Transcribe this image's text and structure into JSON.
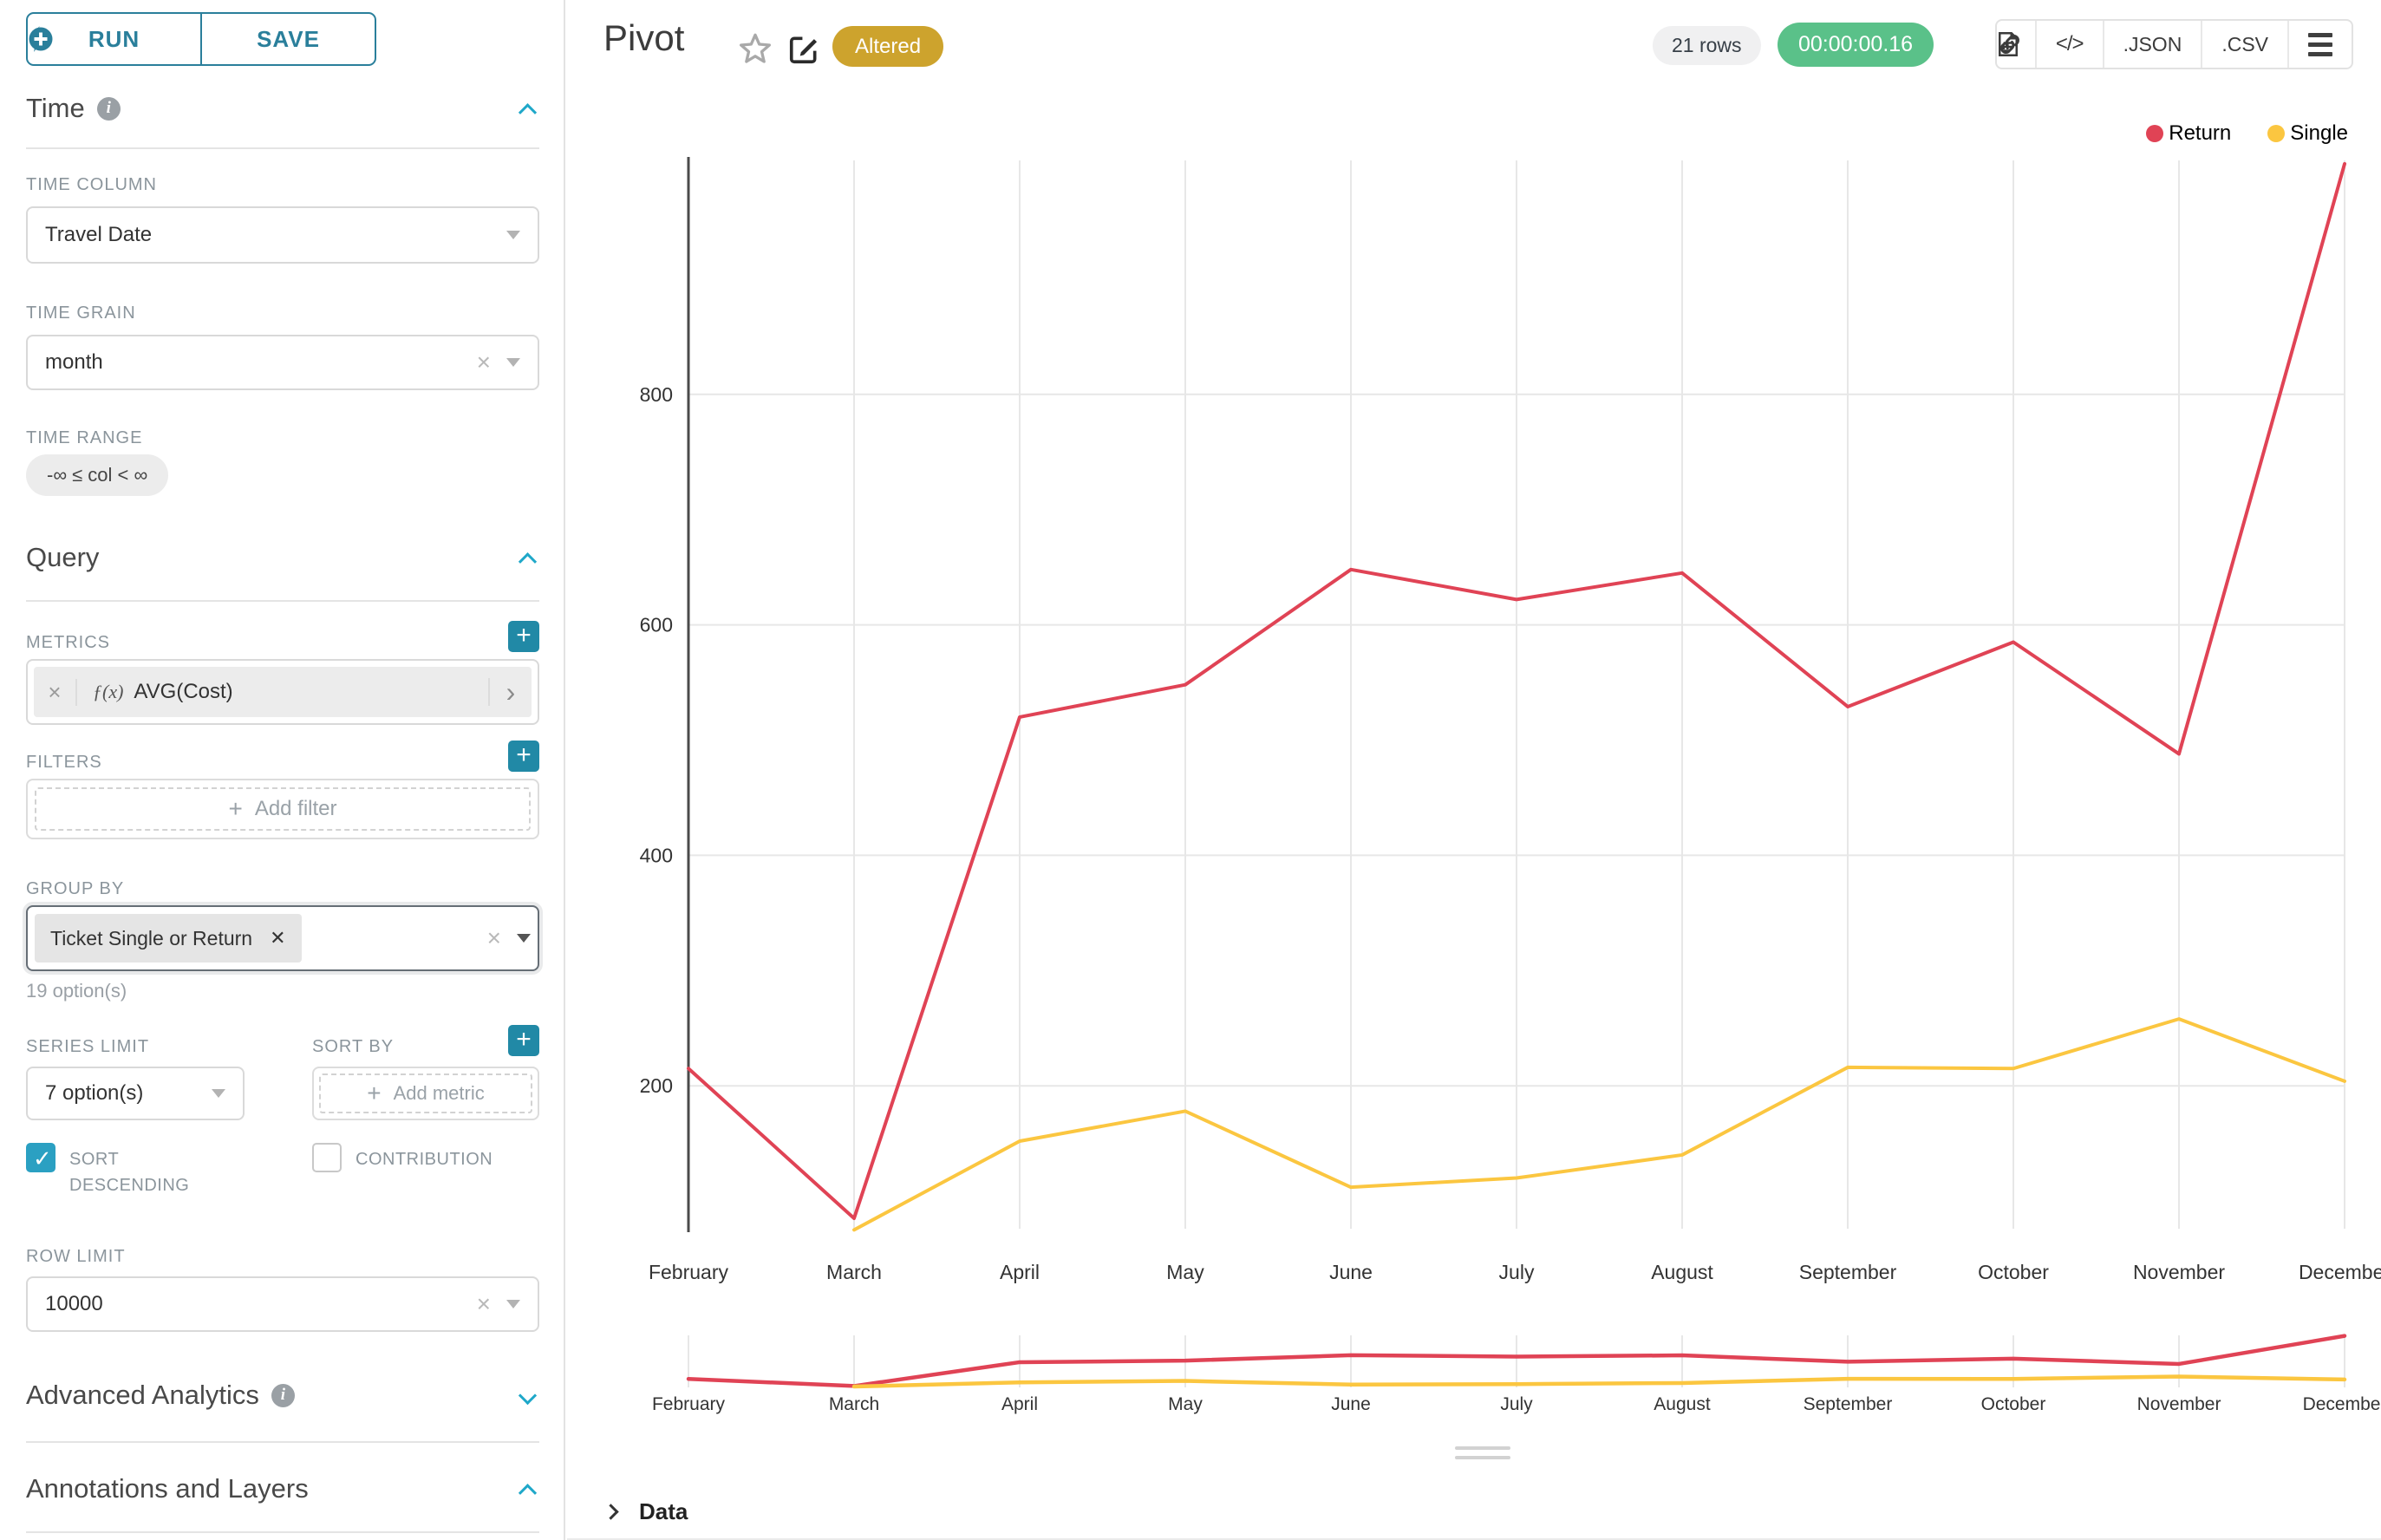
{
  "toolbar": {
    "run_label": "RUN",
    "save_label": "SAVE"
  },
  "sidebar": {
    "time": {
      "title": "Time",
      "column_label": "TIME COLUMN",
      "column_value": "Travel Date",
      "grain_label": "TIME GRAIN",
      "grain_value": "month",
      "range_label": "TIME RANGE",
      "range_value": "-∞ ≤ col < ∞"
    },
    "query": {
      "title": "Query",
      "metrics_label": "METRICS",
      "metric_fx": "ƒ(x)",
      "metric_value": "AVG(Cost)",
      "filters_label": "FILTERS",
      "add_filter_placeholder": "Add filter",
      "group_by_label": "GROUP BY",
      "group_by_value": "Ticket Single or Return",
      "group_by_hint": "19 option(s)",
      "series_limit_label": "SERIES LIMIT",
      "series_limit_value": "7 option(s)",
      "sort_by_label": "SORT BY",
      "add_metric_placeholder": "Add metric",
      "sort_descending_label": "SORT DESCENDING",
      "contribution_label": "CONTRIBUTION",
      "row_limit_label": "ROW LIMIT",
      "row_limit_value": "10000"
    },
    "advanced_title": "Advanced Analytics",
    "annotations_title": "Annotations and Layers"
  },
  "header": {
    "title": "Pivot",
    "altered_badge": "Altered",
    "rows_badge": "21 rows",
    "timer_badge": "00:00:00.16",
    "code_icon_label": "</>",
    "json_label": ".JSON",
    "csv_label": ".CSV"
  },
  "footer": {
    "data_label": "Data"
  },
  "colors": {
    "primary_teal": "#2a7f9b",
    "accent_teal": "#1fa8c9",
    "success_green": "#5ac189",
    "altered_gold": "#cda32d",
    "series_return": "#e04355",
    "series_single": "#fbc640"
  },
  "chart_data": {
    "type": "line",
    "title": "Pivot",
    "categories": [
      "February",
      "March",
      "April",
      "May",
      "June",
      "July",
      "August",
      "September",
      "October",
      "November",
      "December"
    ],
    "series": [
      {
        "name": "Return",
        "color": "#e04355",
        "values": [
          215,
          85,
          520,
          548,
          648,
          622,
          645,
          529,
          585,
          488,
          1000
        ]
      },
      {
        "name": "Single",
        "color": "#fbc640",
        "values": [
          null,
          75,
          152,
          178,
          112,
          120,
          140,
          216,
          215,
          258,
          204
        ]
      }
    ],
    "xlabel": "",
    "ylabel": "",
    "yticks": [
      200,
      400,
      600,
      800
    ],
    "ylim": [
      76,
      1003
    ],
    "grid": true,
    "legend_position": "top-right",
    "has_mini_range_chart": true
  }
}
